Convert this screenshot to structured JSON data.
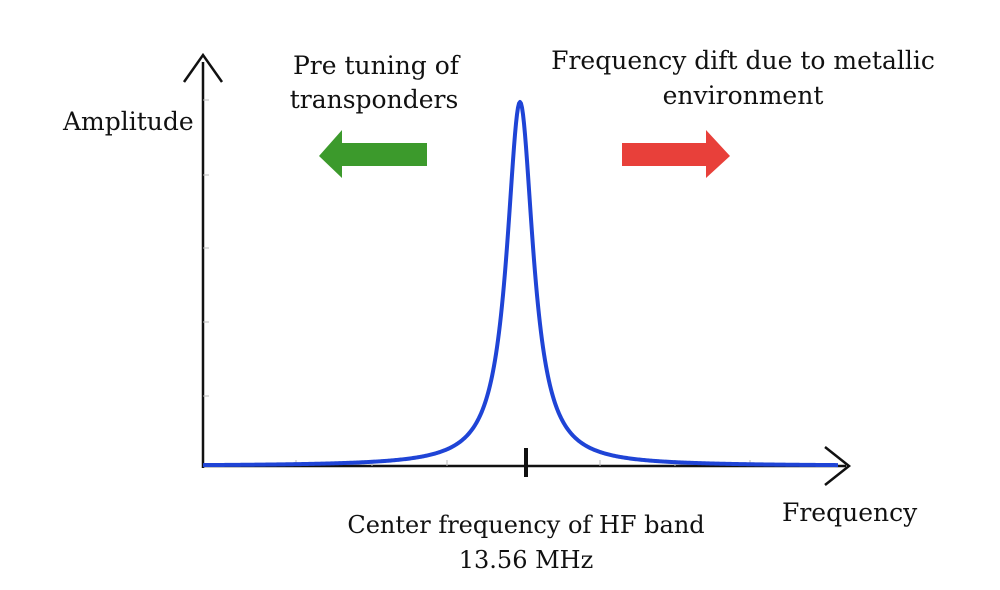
{
  "labels": {
    "y_axis": "Amplitude",
    "x_axis": "Frequency",
    "left_note_line1": "Pre tuning of",
    "left_note_line2": "transponders",
    "right_note_line1": "Frequency dift due to metallic",
    "right_note_line2": "environment",
    "center_line1": "Center frequency of  HF band",
    "center_line2": "13.56 MHz"
  },
  "colors": {
    "curve": "#1f44d6",
    "left_arrow": "#3c9a2c",
    "right_arrow": "#e8403a",
    "axis": "#111111"
  },
  "icons": {
    "left_arrow": "arrow-left-icon",
    "right_arrow": "arrow-right-icon"
  }
}
